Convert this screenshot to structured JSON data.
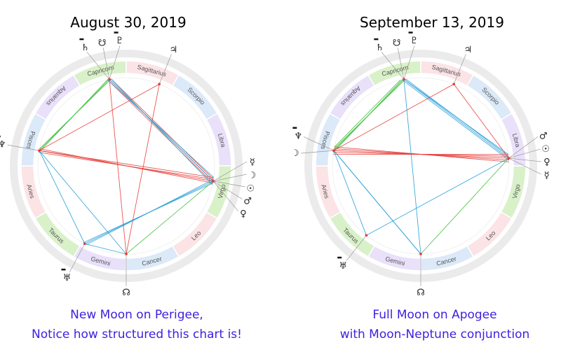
{
  "charts": [
    {
      "title": "August 30, 2019",
      "caption_line1": "New Moon on Perigee,",
      "caption_line2": "Notice how structured this chart is!",
      "signs": [
        "Capricorn",
        "Sagittarius",
        "Scorpio",
        "Libra",
        "Virgo",
        "Leo",
        "Cancer",
        "Gemini",
        "Taurus",
        "Aries",
        "Pisces",
        "Aquarius"
      ],
      "planet_groups": [
        {
          "name": "capricorn-planets",
          "glyphs": [
            "♇",
            "☋",
            "♄"
          ],
          "retro": [
            true,
            false,
            true
          ]
        },
        {
          "name": "sagittarius-planet",
          "glyphs": [
            "♃"
          ],
          "retro": [
            false
          ]
        },
        {
          "name": "pisces-planets",
          "glyphs": [
            "♆"
          ],
          "retro": [
            true
          ]
        },
        {
          "name": "taurus-planet",
          "glyphs": [
            "♅"
          ],
          "retro": [
            true
          ]
        },
        {
          "name": "virgo-planets",
          "glyphs": [
            "♀",
            "♂",
            "☉",
            "☽",
            "☿"
          ],
          "retro": [
            false,
            false,
            false,
            false,
            false
          ]
        },
        {
          "name": "cancer-node",
          "glyphs": [
            "☊"
          ],
          "retro": [
            false
          ]
        }
      ]
    },
    {
      "title": "September 13, 2019",
      "caption_line1": "Full Moon on Apogee",
      "caption_line2": "with Moon-Neptune conjunction",
      "signs": [
        "Capricorn",
        "Sagittarius",
        "Scorpio",
        "Libra",
        "Virgo",
        "Leo",
        "Cancer",
        "Gemini",
        "Taurus",
        "Aries",
        "Pisces",
        "Aquarius"
      ],
      "planet_groups": [
        {
          "name": "capricorn-planets",
          "glyphs": [
            "♇",
            "☋",
            "♄"
          ],
          "retro": [
            true,
            false,
            true
          ]
        },
        {
          "name": "sagittarius-planet",
          "glyphs": [
            "♃"
          ],
          "retro": [
            false
          ]
        },
        {
          "name": "pisces-planets",
          "glyphs": [
            "♆",
            "☽"
          ],
          "retro": [
            true,
            false
          ]
        },
        {
          "name": "taurus-planet",
          "glyphs": [
            "♅"
          ],
          "retro": [
            true
          ]
        },
        {
          "name": "virgo-planets",
          "glyphs": [
            "☿",
            "♀",
            "☉",
            "♂"
          ],
          "retro": [
            false,
            false,
            false,
            false
          ]
        },
        {
          "name": "cancer-node",
          "glyphs": [
            "☊"
          ],
          "retro": [
            false
          ]
        }
      ]
    }
  ],
  "colors": {
    "caption": "#3d1fe0",
    "ring_outer": "#ebebeb",
    "fire": "#fbe3e6",
    "earth": "#d9f1c9",
    "air": "#e9e0fa",
    "water": "#dbe9f8",
    "aspect_red": "#e53935",
    "aspect_blue": "#1e9bd7",
    "aspect_green": "#3dbb3d"
  }
}
